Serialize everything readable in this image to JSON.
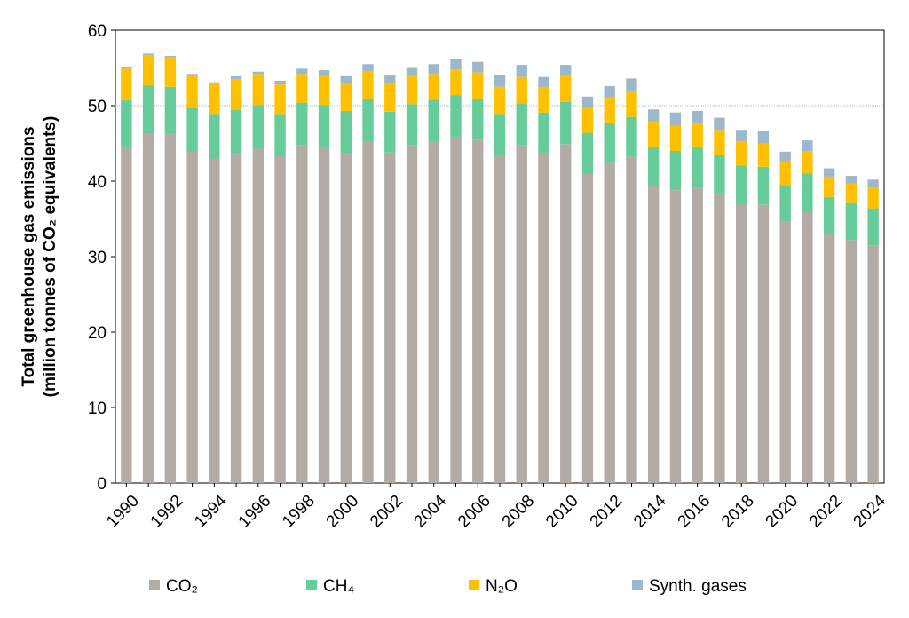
{
  "chart_data": {
    "type": "bar",
    "stacked": true,
    "x": [
      1990,
      1991,
      1992,
      1993,
      1994,
      1995,
      1996,
      1997,
      1998,
      1999,
      2000,
      2001,
      2002,
      2003,
      2004,
      2005,
      2006,
      2007,
      2008,
      2009,
      2010,
      2011,
      2012,
      2013,
      2014,
      2015,
      2016,
      2017,
      2018,
      2019,
      2020,
      2021,
      2022,
      2023,
      2024
    ],
    "x_tick_labels": [
      "1990",
      "1992",
      "1994",
      "1996",
      "1998",
      "2000",
      "2002",
      "2004",
      "2006",
      "2008",
      "2010",
      "2012",
      "2014",
      "2016",
      "2018",
      "2020",
      "2022",
      "2024"
    ],
    "series": [
      {
        "name": "CO2",
        "color": "#b3aca6",
        "values": [
          44.5,
          46.3,
          46.3,
          44.0,
          43.0,
          43.7,
          44.3,
          43.3,
          44.8,
          44.5,
          43.7,
          45.3,
          43.8,
          44.8,
          45.3,
          45.9,
          45.5,
          43.5,
          44.8,
          43.7,
          44.9,
          41.0,
          42.4,
          43.2,
          39.4,
          38.8,
          39.1,
          38.4,
          37.0,
          36.9,
          34.6,
          36.0,
          33.0,
          32.2,
          31.5
        ]
      },
      {
        "name": "CH4",
        "color": "#66cc99",
        "values": [
          6.2,
          6.4,
          6.2,
          5.7,
          5.9,
          5.8,
          5.8,
          5.6,
          5.6,
          5.6,
          5.6,
          5.6,
          5.4,
          5.4,
          5.5,
          5.5,
          5.4,
          5.4,
          5.5,
          5.4,
          5.6,
          5.4,
          5.3,
          5.3,
          5.1,
          5.2,
          5.4,
          5.1,
          5.1,
          5.0,
          4.9,
          5.0,
          4.9,
          4.9,
          4.9
        ]
      },
      {
        "name": "N2O",
        "color": "#ffc000",
        "values": [
          4.2,
          4.0,
          3.9,
          4.2,
          4.0,
          4.0,
          4.1,
          3.9,
          3.8,
          3.9,
          3.7,
          3.7,
          3.7,
          3.7,
          3.4,
          3.4,
          3.5,
          3.6,
          3.5,
          3.3,
          3.6,
          3.3,
          3.4,
          3.3,
          3.4,
          3.3,
          3.2,
          3.3,
          3.2,
          3.1,
          3.1,
          3.0,
          2.7,
          2.6,
          2.7
        ]
      },
      {
        "name": "Synth. gases",
        "color": "#9db8cc",
        "values": [
          0.2,
          0.2,
          0.2,
          0.3,
          0.2,
          0.4,
          0.3,
          0.5,
          0.7,
          0.7,
          0.9,
          0.9,
          1.1,
          1.1,
          1.3,
          1.4,
          1.4,
          1.6,
          1.6,
          1.4,
          1.3,
          1.5,
          1.5,
          1.8,
          1.6,
          1.8,
          1.6,
          1.6,
          1.5,
          1.6,
          1.3,
          1.4,
          1.1,
          1.0,
          1.1
        ]
      }
    ],
    "ylabel": [
      "Total greenhouse gas emissions",
      "(million tonnes of CO₂ equivalents)"
    ],
    "ylim": [
      0,
      60
    ],
    "y_ticks": [
      0,
      10,
      20,
      30,
      40,
      50,
      60
    ],
    "gridlines": [
      50
    ],
    "legend": {
      "placement": "bottom",
      "items": [
        "CO₂",
        "CH₄",
        "N₂O",
        "Synth. gases"
      ]
    }
  }
}
